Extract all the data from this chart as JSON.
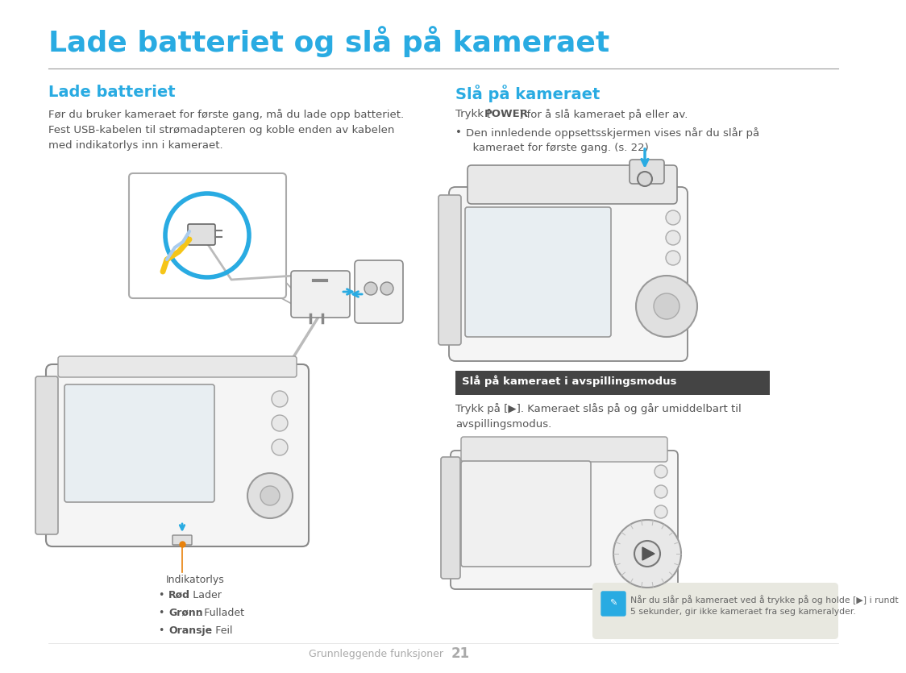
{
  "bg_color": "#ffffff",
  "title": "Lade batteriet og slå på kameraet",
  "title_color": "#29ABE2",
  "title_fontsize": 26,
  "separator_color": "#999999",
  "section_left_heading": "Lade batteriet",
  "section_right_heading": "Slå på kameraet",
  "heading_color": "#29ABE2",
  "heading_fontsize": 14,
  "body_color": "#555555",
  "body_fontsize": 9.5,
  "left_body_text": "Før du bruker kameraet for første gang, må du lade opp batteriet.\nFest USB-kabelen til strømadapteren og koble enden av kabelen\nmed indikatorlys inn i kameraet.",
  "right_body_line1_pre": "Trykk [",
  "right_body_line1_bold": "POWER",
  "right_body_line1_post": "] for å slå kameraet på eller av.",
  "right_bullet": "Den innledende oppsettsskjermen vises når du slår på\n  kameraet for første gang. (s. 22)",
  "avspilling_heading": "Slå på kameraet i avspillingsmodus",
  "avspilling_body": "Trykk på [▶]. Kameraet slås på og går umiddelbart til\navspillingsmodus.",
  "note_text": "Når du slår på kameraet ved å trykke på og holde [▶] i rundt\n5 sekunder, gir ikke kameraet fra seg kameralyder.",
  "indikatorlys_label": "Indikatorlys",
  "bullet_rod_bold": "Rød",
  "bullet_rod_rest": ": Lader",
  "bullet_gronn_bold": "Grønn",
  "bullet_gronn_rest": ": Fulladet",
  "bullet_oransje_bold": "Oransje",
  "bullet_oransje_rest": ": Feil",
  "footer_text": "Grunnleggende funksjoner",
  "footer_number": "21",
  "note_bg": "#e8e8e0",
  "avspilling_bg": "#444444",
  "line_color": "#888888",
  "camera_fill": "#f5f5f5",
  "screen_fill": "#e8eef2",
  "blue_arrow": "#29ABE2",
  "orange_line": "#E8820C",
  "yellow_cable": "#F5C518"
}
